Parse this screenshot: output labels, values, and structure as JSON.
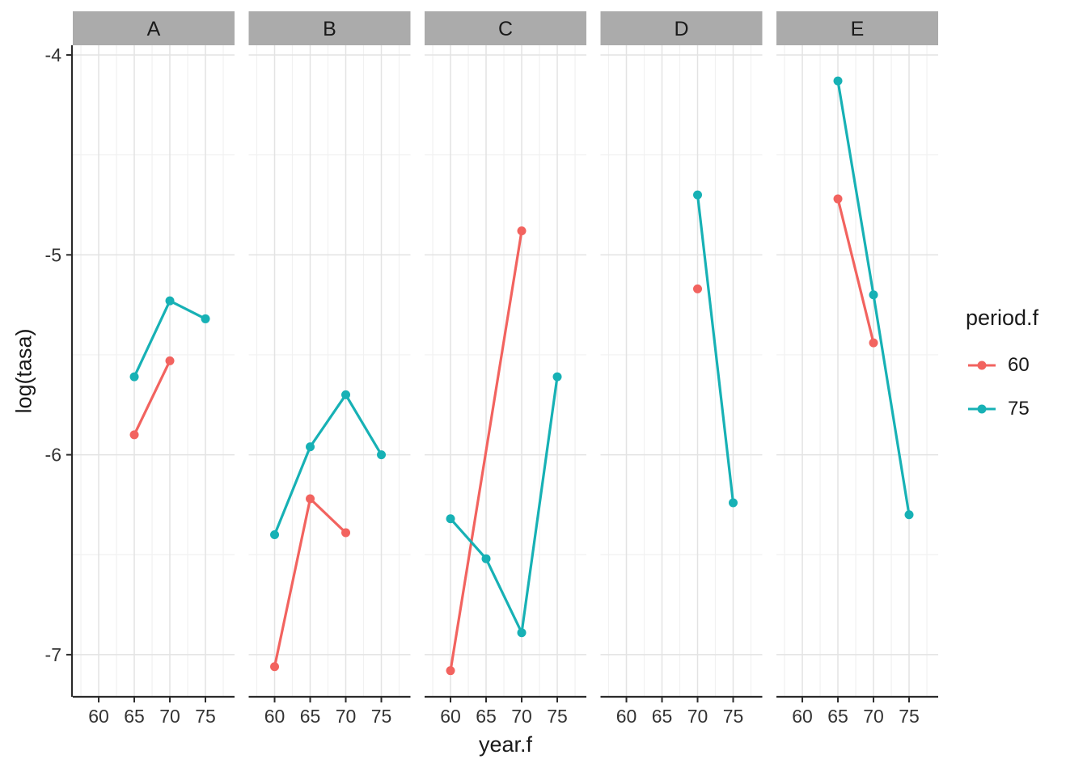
{
  "figure": {
    "xlabel": "year.f",
    "ylabel": "log(tasa)"
  },
  "chart_data": {
    "type": "line",
    "facet_variable_values": [
      "A",
      "B",
      "C",
      "D",
      "E"
    ],
    "x_ticks": [
      60,
      65,
      70,
      75
    ],
    "y_ticks": [
      -4,
      -5,
      -6,
      -7
    ],
    "xlabel": "year.f",
    "ylabel": "log(tasa)",
    "legend_title": "period.f",
    "legend_position": "right",
    "grid": true,
    "xlim": [
      56.4,
      79.1
    ],
    "ylim": [
      -7.2,
      -3.95
    ],
    "legend_items": [
      {
        "label": "60",
        "color": "#F2635F"
      },
      {
        "label": "75",
        "color": "#17B1B5"
      }
    ],
    "series_colors": {
      "60": "#F2635F",
      "75": "#17B1B5"
    },
    "panels": [
      {
        "facet": "A",
        "series": [
          {
            "name": "60",
            "points": [
              [
                65,
                -5.9
              ],
              [
                70,
                -5.53
              ]
            ]
          },
          {
            "name": "75",
            "points": [
              [
                65,
                -5.61
              ],
              [
                70,
                -5.23
              ],
              [
                75,
                -5.32
              ]
            ]
          }
        ]
      },
      {
        "facet": "B",
        "series": [
          {
            "name": "60",
            "points": [
              [
                60,
                -7.06
              ],
              [
                65,
                -6.22
              ],
              [
                70,
                -6.39
              ]
            ]
          },
          {
            "name": "75",
            "points": [
              [
                60,
                -6.4
              ],
              [
                65,
                -5.96
              ],
              [
                70,
                -5.7
              ],
              [
                75,
                -6.0
              ]
            ]
          }
        ]
      },
      {
        "facet": "C",
        "series": [
          {
            "name": "60",
            "points": [
              [
                60,
                -7.08
              ],
              [
                70,
                -4.88
              ]
            ]
          },
          {
            "name": "75",
            "points": [
              [
                60,
                -6.32
              ],
              [
                65,
                -6.52
              ],
              [
                70,
                -6.89
              ],
              [
                75,
                -5.61
              ]
            ]
          }
        ]
      },
      {
        "facet": "D",
        "series": [
          {
            "name": "60",
            "points": [
              [
                70,
                -5.17
              ]
            ]
          },
          {
            "name": "75",
            "points": [
              [
                70,
                -4.7
              ],
              [
                75,
                -6.24
              ]
            ]
          }
        ]
      },
      {
        "facet": "E",
        "series": [
          {
            "name": "60",
            "points": [
              [
                65,
                -4.72
              ],
              [
                70,
                -5.44
              ]
            ]
          },
          {
            "name": "75",
            "points": [
              [
                65,
                -4.13
              ],
              [
                70,
                -5.2
              ],
              [
                75,
                -6.3
              ]
            ]
          }
        ]
      }
    ]
  }
}
